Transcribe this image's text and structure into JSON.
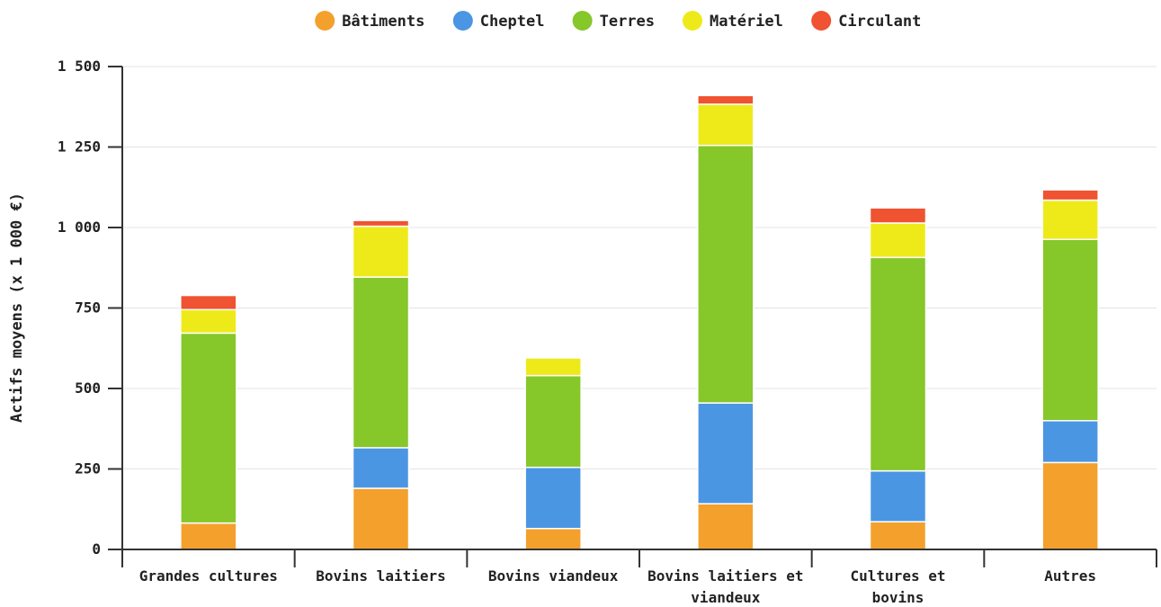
{
  "chart_data": {
    "type": "bar",
    "stacked": true,
    "ylabel": "Actifs moyens (x 1 000 €)",
    "xlabel": "",
    "ylim": [
      0,
      1500
    ],
    "yticks": [
      0,
      250,
      500,
      750,
      1000,
      1250,
      1500
    ],
    "ytick_labels": [
      "0",
      "250",
      "500",
      "750",
      "1 000",
      "1 250",
      "1 500"
    ],
    "grid": "horizontal",
    "legend_position": "top-center",
    "categories": [
      [
        "Grandes cultures"
      ],
      [
        "Bovins laitiers"
      ],
      [
        "Bovins viandeux"
      ],
      [
        "Bovins laitiers et",
        "viandeux"
      ],
      [
        "Cultures et",
        "bovins"
      ],
      [
        "Autres"
      ]
    ],
    "series": [
      {
        "name": "Bâtiments",
        "color": "#f4a02c",
        "values": [
          82,
          190,
          65,
          142,
          86,
          270
        ]
      },
      {
        "name": "Cheptel",
        "color": "#4b96e3",
        "values": [
          0,
          126,
          190,
          313,
          158,
          130
        ]
      },
      {
        "name": "Terres",
        "color": "#86c72a",
        "values": [
          590,
          530,
          285,
          800,
          663,
          563
        ]
      },
      {
        "name": "Matériel",
        "color": "#eeea1a",
        "values": [
          73,
          158,
          55,
          128,
          107,
          122
        ]
      },
      {
        "name": "Circulant",
        "color": "#ef5331",
        "values": [
          44,
          18,
          0,
          27,
          47,
          32
        ]
      }
    ]
  }
}
